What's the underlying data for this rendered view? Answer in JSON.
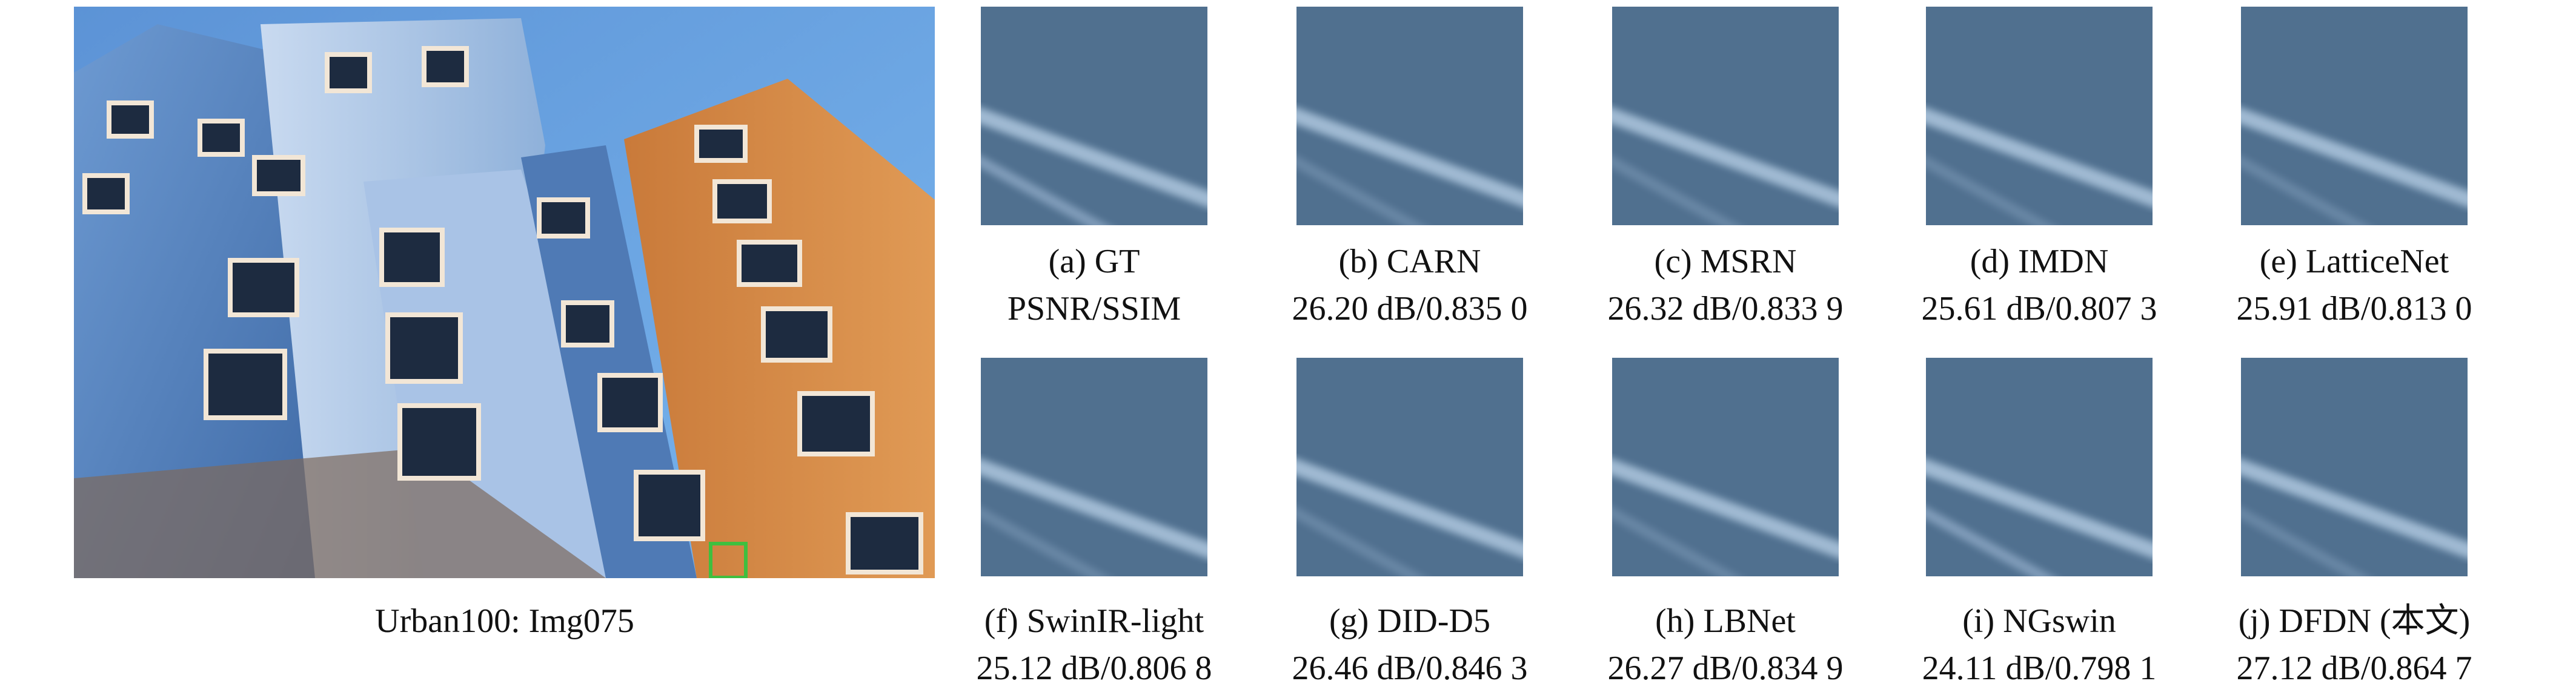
{
  "figure": {
    "main_caption": "Urban100: Img075",
    "crops": [
      {
        "label": "(a) GT",
        "metrics": "PSNR/SSIM"
      },
      {
        "label": "(b) CARN",
        "metrics": "26.20 dB/0.835 0"
      },
      {
        "label": "(c) MSRN",
        "metrics": "26.32 dB/0.833 9"
      },
      {
        "label": "(d) IMDN",
        "metrics": "25.61 dB/0.807 3"
      },
      {
        "label": "(e) LatticeNet",
        "metrics": "25.91 dB/0.813 0"
      },
      {
        "label": "(f) SwinIR-light",
        "metrics": "25.12 dB/0.806 8"
      },
      {
        "label": "(g) DID-D5",
        "metrics": "26.46 dB/0.846 3"
      },
      {
        "label": "(h) LBNet",
        "metrics": "26.27 dB/0.834 9"
      },
      {
        "label": "(i) NGswin",
        "metrics": "24.11 dB/0.798 1"
      },
      {
        "label": "(j) DFDN (本文)",
        "metrics": "27.12 dB/0.864 7"
      }
    ]
  }
}
